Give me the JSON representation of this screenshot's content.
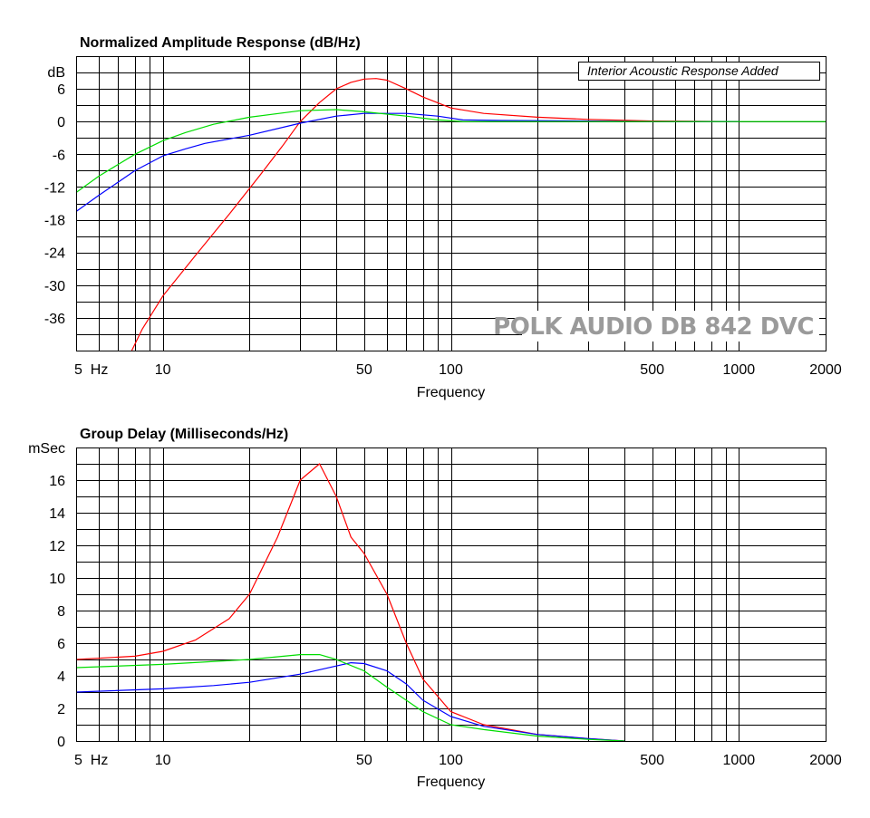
{
  "chart_data": [
    {
      "type": "line",
      "title": "Normalized Amplitude Response (dB/Hz)",
      "xlabel": "Frequency",
      "ylabel": "dB",
      "x_scale": "log",
      "xlim": [
        5,
        2000
      ],
      "ylim": [
        -42,
        12
      ],
      "x_tick_labels": [
        {
          "value": 5,
          "label": "5  Hz"
        },
        {
          "value": 10,
          "label": "10"
        },
        {
          "value": 50,
          "label": "50"
        },
        {
          "value": 100,
          "label": "100"
        },
        {
          "value": 500,
          "label": "500"
        },
        {
          "value": 1000,
          "label": "1000"
        },
        {
          "value": 2000,
          "label": "2000"
        }
      ],
      "y_tick_labels": [
        {
          "value": 6,
          "label": "6"
        },
        {
          "value": 0,
          "label": "0"
        },
        {
          "value": -6,
          "label": "-6"
        },
        {
          "value": -12,
          "label": "-12"
        },
        {
          "value": -18,
          "label": "-18"
        },
        {
          "value": -24,
          "label": "-24"
        },
        {
          "value": -30,
          "label": "-30"
        },
        {
          "value": -36,
          "label": "-36"
        }
      ],
      "grid": true,
      "annotation": "Interior Acoustic Response Added",
      "watermark": "POLK AUDIO DB 842 DVC",
      "series": [
        {
          "color": "#ff0000",
          "points": [
            [
              7.8,
              -42
            ],
            [
              8.5,
              -38
            ],
            [
              10,
              -32
            ],
            [
              13,
              -24.5
            ],
            [
              17,
              -17
            ],
            [
              22,
              -9.5
            ],
            [
              26,
              -4.5
            ],
            [
              30,
              0
            ],
            [
              35,
              3.5
            ],
            [
              40,
              6
            ],
            [
              45,
              7.2
            ],
            [
              50,
              7.8
            ],
            [
              55,
              7.9
            ],
            [
              60,
              7.6
            ],
            [
              70,
              6
            ],
            [
              80,
              4.5
            ],
            [
              100,
              2.5
            ],
            [
              130,
              1.5
            ],
            [
              200,
              0.8
            ],
            [
              300,
              0.4
            ],
            [
              500,
              0.1
            ],
            [
              1000,
              0
            ]
          ]
        },
        {
          "color": "#0000ff",
          "points": [
            [
              5,
              -16.5
            ],
            [
              6,
              -13.5
            ],
            [
              8,
              -9
            ],
            [
              10,
              -6.3
            ],
            [
              12,
              -5
            ],
            [
              14,
              -4
            ],
            [
              20,
              -2.5
            ],
            [
              30,
              -0.3
            ],
            [
              40,
              1
            ],
            [
              50,
              1.5
            ],
            [
              70,
              1.5
            ],
            [
              90,
              1
            ],
            [
              110,
              0.3
            ],
            [
              150,
              0.2
            ],
            [
              300,
              0.1
            ],
            [
              500,
              0
            ],
            [
              1000,
              0
            ]
          ]
        },
        {
          "color": "#00dd00",
          "points": [
            [
              5,
              -13
            ],
            [
              6,
              -10
            ],
            [
              8,
              -6
            ],
            [
              10,
              -3.5
            ],
            [
              12,
              -2
            ],
            [
              15,
              -0.5
            ],
            [
              20,
              0.8
            ],
            [
              30,
              2
            ],
            [
              40,
              2.2
            ],
            [
              50,
              1.8
            ],
            [
              70,
              1
            ],
            [
              90,
              0.3
            ],
            [
              110,
              0
            ],
            [
              200,
              0
            ],
            [
              500,
              0
            ],
            [
              1000,
              0
            ],
            [
              2000,
              0
            ]
          ]
        }
      ]
    },
    {
      "type": "line",
      "title": "Group Delay (Milliseconds/Hz)",
      "xlabel": "Frequency",
      "ylabel": "mSec",
      "x_scale": "log",
      "xlim": [
        5,
        2000
      ],
      "ylim": [
        0,
        18
      ],
      "x_tick_labels": [
        {
          "value": 5,
          "label": "5  Hz"
        },
        {
          "value": 10,
          "label": "10"
        },
        {
          "value": 50,
          "label": "50"
        },
        {
          "value": 100,
          "label": "100"
        },
        {
          "value": 500,
          "label": "500"
        },
        {
          "value": 1000,
          "label": "1000"
        },
        {
          "value": 2000,
          "label": "2000"
        }
      ],
      "y_tick_labels": [
        {
          "value": 16,
          "label": "16"
        },
        {
          "value": 14,
          "label": "14"
        },
        {
          "value": 12,
          "label": "12"
        },
        {
          "value": 10,
          "label": "10"
        },
        {
          "value": 8,
          "label": "8"
        },
        {
          "value": 6,
          "label": "6"
        },
        {
          "value": 4,
          "label": "4"
        },
        {
          "value": 2,
          "label": "2"
        },
        {
          "value": 0,
          "label": "0"
        }
      ],
      "grid": true,
      "series": [
        {
          "color": "#ff0000",
          "points": [
            [
              5,
              5
            ],
            [
              8,
              5.2
            ],
            [
              10,
              5.5
            ],
            [
              13,
              6.2
            ],
            [
              17,
              7.5
            ],
            [
              20,
              9
            ],
            [
              25,
              12.5
            ],
            [
              30,
              16
            ],
            [
              35,
              17
            ],
            [
              40,
              15
            ],
            [
              45,
              12.5
            ],
            [
              50,
              11.5
            ],
            [
              60,
              9
            ],
            [
              70,
              6
            ],
            [
              80,
              3.8
            ],
            [
              100,
              1.8
            ],
            [
              130,
              1
            ],
            [
              200,
              0.4
            ],
            [
              300,
              0.15
            ],
            [
              400,
              0
            ]
          ]
        },
        {
          "color": "#0000ff",
          "points": [
            [
              5,
              3
            ],
            [
              10,
              3.2
            ],
            [
              15,
              3.4
            ],
            [
              20,
              3.6
            ],
            [
              30,
              4.1
            ],
            [
              40,
              4.6
            ],
            [
              45,
              4.8
            ],
            [
              50,
              4.75
            ],
            [
              60,
              4.3
            ],
            [
              70,
              3.5
            ],
            [
              80,
              2.5
            ],
            [
              100,
              1.5
            ],
            [
              130,
              0.9
            ],
            [
              200,
              0.4
            ],
            [
              300,
              0.15
            ],
            [
              400,
              0
            ]
          ]
        },
        {
          "color": "#00dd00",
          "points": [
            [
              5,
              4.5
            ],
            [
              10,
              4.7
            ],
            [
              20,
              5
            ],
            [
              30,
              5.3
            ],
            [
              35,
              5.3
            ],
            [
              40,
              5
            ],
            [
              50,
              4.3
            ],
            [
              60,
              3.3
            ],
            [
              70,
              2.5
            ],
            [
              80,
              1.8
            ],
            [
              100,
              1
            ],
            [
              130,
              0.7
            ],
            [
              200,
              0.3
            ],
            [
              300,
              0.1
            ],
            [
              400,
              0
            ]
          ]
        }
      ]
    }
  ]
}
